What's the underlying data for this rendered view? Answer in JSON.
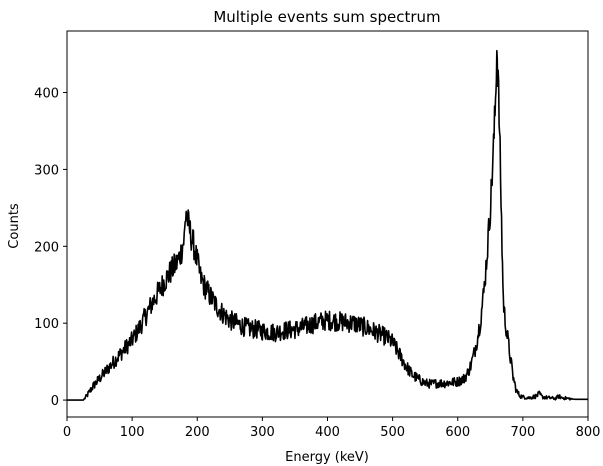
{
  "chart_data": {
    "type": "line",
    "title": "Multiple events sum spectrum",
    "xlabel": "Energy (keV)",
    "ylabel": "Counts",
    "xlim": [
      0,
      800
    ],
    "ylim": [
      -22,
      480
    ],
    "xticks": [
      0,
      100,
      200,
      300,
      400,
      500,
      600,
      700,
      800
    ],
    "yticks": [
      0,
      100,
      200,
      300,
      400
    ],
    "grid": false,
    "series": [
      {
        "color": "#000000",
        "x": [
          0,
          25,
          30,
          40,
          50,
          60,
          70,
          80,
          90,
          100,
          110,
          120,
          130,
          140,
          150,
          160,
          170,
          175,
          180,
          183,
          186,
          190,
          195,
          200,
          205,
          210,
          220,
          230,
          240,
          250,
          260,
          270,
          280,
          290,
          300,
          310,
          320,
          330,
          340,
          350,
          360,
          370,
          380,
          390,
          400,
          410,
          420,
          430,
          440,
          450,
          460,
          470,
          480,
          490,
          500,
          510,
          520,
          530,
          540,
          550,
          560,
          570,
          580,
          590,
          600,
          610,
          615,
          620,
          625,
          630,
          635,
          640,
          645,
          650,
          652,
          655,
          658,
          660,
          662,
          665,
          668,
          670,
          672,
          675,
          680,
          685,
          690,
          695,
          700,
          710,
          720,
          725,
          730,
          740,
          750,
          755,
          760,
          770,
          780,
          790,
          800
        ],
        "y": [
          0,
          0,
          5,
          18,
          28,
          38,
          48,
          58,
          68,
          78,
          92,
          108,
          125,
          140,
          155,
          168,
          180,
          192,
          210,
          248,
          230,
          215,
          200,
          180,
          160,
          150,
          135,
          122,
          112,
          104,
          100,
          96,
          93,
          92,
          90,
          89,
          88,
          90,
          91,
          92,
          94,
          97,
          100,
          102,
          104,
          103,
          102,
          101,
          100,
          97,
          94,
          90,
          86,
          82,
          75,
          60,
          45,
          33,
          27,
          22,
          21,
          22,
          22,
          23,
          24,
          28,
          35,
          45,
          60,
          80,
          105,
          140,
          190,
          250,
          280,
          330,
          390,
          458,
          420,
          320,
          200,
          130,
          110,
          90,
          60,
          30,
          12,
          6,
          4,
          3,
          5,
          8,
          4,
          3,
          2,
          5,
          3,
          2,
          1,
          1,
          1
        ]
      }
    ]
  }
}
